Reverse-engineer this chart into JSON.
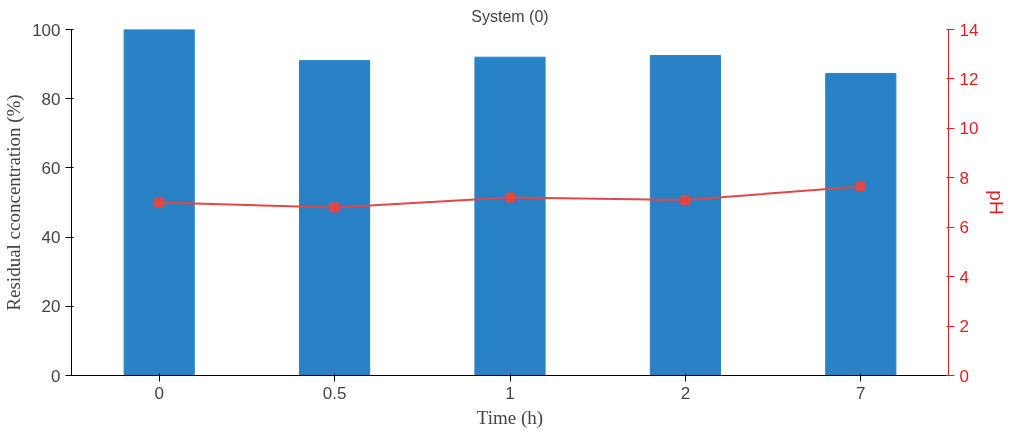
{
  "chart_data": {
    "type": "bar",
    "title": "System (0)",
    "xlabel": "Time (h)",
    "ylabel": "Residual cconcentration (%)",
    "y2label": "pH",
    "categories": [
      "0",
      "0.5",
      "1",
      "2",
      "7"
    ],
    "series": [
      {
        "color": "#2a82c6",
        "values": [
          100,
          91,
          92,
          92.5,
          87.3
        ]
      },
      {
        "type": "line",
        "axis": "y2",
        "color": "#e04848",
        "values": [
          7.0,
          6.8,
          7.2,
          7.1,
          7.65
        ],
        "marker": "square"
      }
    ],
    "ylim": [
      0,
      100
    ],
    "yticks": [
      0,
      20,
      40,
      60,
      80,
      100
    ],
    "y2lim": [
      0,
      14
    ],
    "y2ticks": [
      0,
      2,
      4,
      6,
      8,
      10,
      12,
      14
    ],
    "grid": false
  }
}
